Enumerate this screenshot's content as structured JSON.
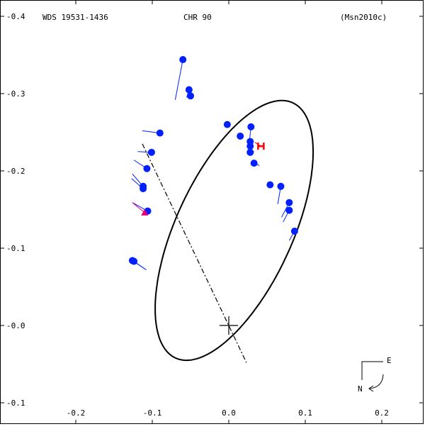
{
  "header": {
    "left": "WDS 19531-1436",
    "center": "CHR  90",
    "right": "(Msn2010c)"
  },
  "compass": {
    "east_label": "E",
    "north_label": "N"
  },
  "colors": {
    "observation": "#0020ff",
    "residual": "#0020ff",
    "special_marker": "#e8007a",
    "highlight_marker": "#ff0000",
    "orbit": "#000000"
  },
  "chart_data": {
    "type": "scatter",
    "title": "",
    "xlabel": "",
    "ylabel": "",
    "xlim": [
      -0.25,
      0.25
    ],
    "ylim": [
      -0.1,
      0.4
    ],
    "x_ticks": [
      {
        "value": -0.2,
        "label": "-0.2"
      },
      {
        "value": -0.1,
        "label": "-0.1"
      },
      {
        "value": 0.0,
        "label": "0.0"
      },
      {
        "value": 0.1,
        "label": "0.1"
      },
      {
        "value": 0.2,
        "label": "0.2"
      }
    ],
    "y_ticks": [
      {
        "value": -0.1,
        "label": "-0.1"
      },
      {
        "value": 0.0,
        "label": "-0.0"
      },
      {
        "value": 0.1,
        "label": "-0.1"
      },
      {
        "value": 0.2,
        "label": "-0.2"
      },
      {
        "value": 0.3,
        "label": "-0.3"
      },
      {
        "value": 0.4,
        "label": "-0.4"
      }
    ],
    "orbit": {
      "center": [
        0.007,
        0.123
      ],
      "semi_major": 0.182,
      "semi_minor": 0.076,
      "tilt_deg": 65
    },
    "line_of_nodes": [
      [
        -0.113,
        0.235
      ],
      [
        0.023,
        -0.048
      ]
    ],
    "primary": [
      0.0,
      0.0
    ],
    "observations": [
      {
        "x": -0.06,
        "y": 0.344,
        "ox": -0.07,
        "oy": 0.292
      },
      {
        "x": -0.052,
        "y": 0.305,
        "ox": -0.055,
        "oy": 0.295
      },
      {
        "x": -0.05,
        "y": 0.297,
        "ox": -0.052,
        "oy": 0.294
      },
      {
        "x": -0.09,
        "y": 0.249,
        "ox": -0.113,
        "oy": 0.252
      },
      {
        "x": -0.101,
        "y": 0.224,
        "ox": -0.119,
        "oy": 0.225
      },
      {
        "x": -0.107,
        "y": 0.203,
        "ox": -0.124,
        "oy": 0.214
      },
      {
        "x": -0.112,
        "y": 0.18,
        "ox": -0.126,
        "oy": 0.196
      },
      {
        "x": -0.112,
        "y": 0.177,
        "ox": -0.127,
        "oy": 0.19
      },
      {
        "x": -0.106,
        "y": 0.148,
        "ox": -0.126,
        "oy": 0.159
      },
      {
        "x": -0.126,
        "y": 0.084,
        "ox": -0.108,
        "oy": 0.072
      },
      {
        "x": -0.124,
        "y": 0.083,
        "ox": -0.108,
        "oy": 0.072
      },
      {
        "x": -0.002,
        "y": 0.26,
        "ox": 0.002,
        "oy": 0.262
      },
      {
        "x": 0.015,
        "y": 0.245,
        "ox": 0.017,
        "oy": 0.245
      },
      {
        "x": 0.029,
        "y": 0.257,
        "ox": 0.027,
        "oy": 0.238
      },
      {
        "x": 0.028,
        "y": 0.238,
        "ox": 0.028,
        "oy": 0.236
      },
      {
        "x": 0.028,
        "y": 0.232,
        "ox": 0.031,
        "oy": 0.229
      },
      {
        "x": 0.028,
        "y": 0.224,
        "ox": 0.033,
        "oy": 0.225
      },
      {
        "x": 0.033,
        "y": 0.21,
        "ox": 0.04,
        "oy": 0.207
      },
      {
        "x": 0.054,
        "y": 0.182,
        "ox": 0.053,
        "oy": 0.18
      },
      {
        "x": 0.068,
        "y": 0.18,
        "ox": 0.064,
        "oy": 0.157
      },
      {
        "x": 0.079,
        "y": 0.159,
        "ox": 0.069,
        "oy": 0.14
      },
      {
        "x": 0.079,
        "y": 0.149,
        "ox": 0.071,
        "oy": 0.134
      },
      {
        "x": 0.086,
        "y": 0.122,
        "ox": 0.079,
        "oy": 0.11
      }
    ],
    "special_observation": {
      "x": -0.11,
      "y": 0.146,
      "ox": -0.126,
      "oy": 0.159
    },
    "highlight_observation": {
      "x": 0.042,
      "y": 0.232,
      "ox": 0.034,
      "oy": 0.237
    }
  }
}
